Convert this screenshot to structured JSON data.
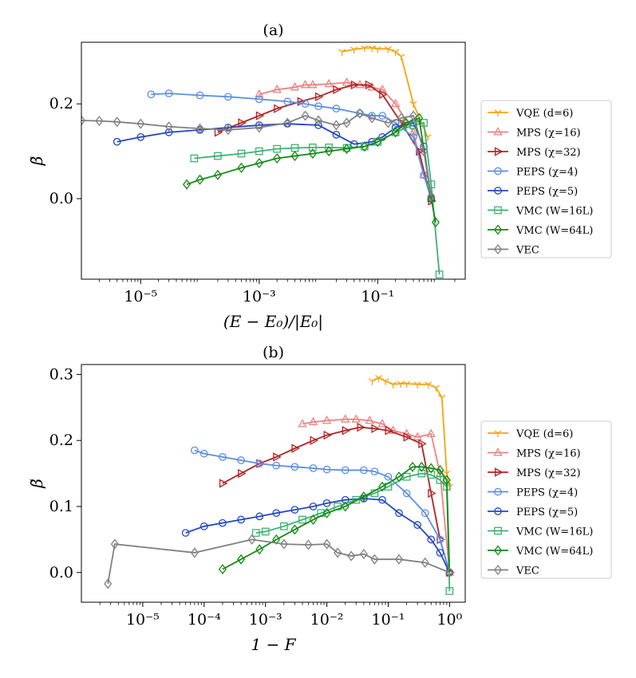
{
  "chart_data": [
    {
      "type": "line",
      "title": "(a)",
      "xlabel": "(E − E₀)/|E₀|",
      "ylabel": "β̃",
      "xscale": "log",
      "xlim": [
        1e-06,
        3
      ],
      "ylim": [
        -0.17,
        0.33
      ],
      "xticks": [
        1e-05,
        0.001,
        0.1
      ],
      "xtick_labels": [
        "10⁻⁵",
        "10⁻³",
        "10⁻¹"
      ],
      "yticks": [
        0.0,
        0.2
      ],
      "ytick_labels": [
        "0.0",
        "0.2"
      ],
      "grid": false,
      "legend_position": "right",
      "series": [
        {
          "name": "VQE (d=6)",
          "color": "#f5a40c",
          "marker": "tri_down",
          "x": [
            0.025,
            0.04,
            0.06,
            0.08,
            0.1,
            0.15,
            0.2,
            0.25,
            0.4,
            0.7
          ],
          "y": [
            0.31,
            0.315,
            0.318,
            0.318,
            0.316,
            0.316,
            0.31,
            0.3,
            0.2,
            0.13
          ]
        },
        {
          "name": "MPS (χ=16)",
          "color": "#ee8181",
          "marker": "triangle",
          "x": [
            0.001,
            0.002,
            0.004,
            0.006,
            0.008,
            0.015,
            0.03,
            0.05,
            0.08,
            0.12,
            0.2,
            0.4,
            0.6,
            0.8
          ],
          "y": [
            0.22,
            0.23,
            0.235,
            0.24,
            0.24,
            0.242,
            0.245,
            0.24,
            0.235,
            0.23,
            0.2,
            0.14,
            0.05,
            0.0
          ]
        },
        {
          "name": "MPS (χ=32)",
          "color": "#b22222",
          "marker": "triangle_right",
          "x": [
            0.0002,
            0.0005,
            0.001,
            0.002,
            0.005,
            0.01,
            0.02,
            0.04,
            0.07,
            0.12,
            0.25,
            0.5,
            0.8
          ],
          "y": [
            0.14,
            0.16,
            0.175,
            0.19,
            0.205,
            0.215,
            0.23,
            0.24,
            0.24,
            0.22,
            0.16,
            0.1,
            -0.005
          ]
        },
        {
          "name": "PEPS (χ=4)",
          "color": "#5b8fe6",
          "marker": "circle",
          "x": [
            1.5e-05,
            3e-05,
            0.0001,
            0.0003,
            0.001,
            0.003,
            0.006,
            0.01,
            0.02,
            0.05,
            0.08,
            0.12,
            0.2,
            0.4,
            0.6,
            0.8
          ],
          "y": [
            0.22,
            0.222,
            0.218,
            0.215,
            0.21,
            0.205,
            0.2,
            0.195,
            0.19,
            0.18,
            0.175,
            0.175,
            0.16,
            0.13,
            0.05,
            0.0
          ]
        },
        {
          "name": "PEPS (χ=5)",
          "color": "#2446c4",
          "marker": "circle",
          "x": [
            4e-06,
            1e-05,
            3e-05,
            0.0001,
            0.0003,
            0.001,
            0.003,
            0.01,
            0.02,
            0.04,
            0.08,
            0.12,
            0.2,
            0.4,
            0.6,
            0.8
          ],
          "y": [
            0.12,
            0.13,
            0.14,
            0.145,
            0.15,
            0.155,
            0.158,
            0.155,
            0.135,
            0.115,
            0.12,
            0.13,
            0.15,
            0.16,
            0.11,
            0.0
          ]
        },
        {
          "name": "VMC (W=16L)",
          "color": "#3cb371",
          "marker": "square",
          "x": [
            8e-05,
            0.0002,
            0.0005,
            0.001,
            0.002,
            0.004,
            0.008,
            0.015,
            0.03,
            0.06,
            0.1,
            0.2,
            0.4,
            0.6,
            0.8,
            1.1
          ],
          "y": [
            0.085,
            0.09,
            0.095,
            0.1,
            0.105,
            0.107,
            0.108,
            0.108,
            0.107,
            0.11,
            0.12,
            0.14,
            0.155,
            0.16,
            0.03,
            -0.16
          ]
        },
        {
          "name": "VMC (W=64L)",
          "color": "#138a13",
          "marker": "diamond",
          "x": [
            6e-05,
            0.0001,
            0.0002,
            0.0005,
            0.001,
            0.002,
            0.004,
            0.008,
            0.015,
            0.03,
            0.06,
            0.1,
            0.2,
            0.3,
            0.5,
            0.8,
            0.95
          ],
          "y": [
            0.03,
            0.04,
            0.05,
            0.065,
            0.075,
            0.085,
            0.09,
            0.095,
            0.1,
            0.105,
            0.11,
            0.12,
            0.14,
            0.16,
            0.17,
            0.0,
            -0.05
          ]
        },
        {
          "name": "VEC",
          "color": "#808080",
          "marker": "diamond",
          "x": [
            1e-06,
            2e-06,
            4e-06,
            1e-05,
            3e-05,
            0.0001,
            0.0003,
            0.001,
            0.003,
            0.006,
            0.01,
            0.02,
            0.03,
            0.05,
            0.08,
            0.15,
            0.25,
            0.4,
            0.6,
            0.8
          ],
          "y": [
            0.165,
            0.164,
            0.162,
            0.158,
            0.152,
            0.148,
            0.145,
            0.15,
            0.16,
            0.175,
            0.165,
            0.155,
            0.16,
            0.18,
            0.17,
            0.16,
            0.17,
            0.175,
            0.1,
            0.005
          ]
        }
      ]
    },
    {
      "type": "line",
      "title": "(b)",
      "xlabel": "1 − F",
      "ylabel": "β̃",
      "xscale": "log",
      "xlim": [
        1e-06,
        1.8
      ],
      "ylim": [
        -0.045,
        0.315
      ],
      "xticks": [
        1e-05,
        0.0001,
        0.001,
        0.01,
        0.1,
        1
      ],
      "xtick_labels": [
        "10⁻⁵",
        "10⁻⁴",
        "10⁻³",
        "10⁻²",
        "10⁻¹",
        "10⁰"
      ],
      "yticks": [
        0.0,
        0.1,
        0.2,
        0.3
      ],
      "ytick_labels": [
        "0.0",
        "0.1",
        "0.2",
        "0.3"
      ],
      "grid": false,
      "legend_position": "right",
      "series": [
        {
          "name": "VQE (d=6)",
          "color": "#f5a40c",
          "marker": "tri_down",
          "x": [
            0.055,
            0.07,
            0.09,
            0.12,
            0.16,
            0.2,
            0.3,
            0.45,
            0.6,
            0.75,
            0.9,
            1.0
          ],
          "y": [
            0.29,
            0.295,
            0.29,
            0.285,
            0.286,
            0.286,
            0.285,
            0.285,
            0.28,
            0.265,
            0.15,
            0.13
          ]
        },
        {
          "name": "MPS (χ=16)",
          "color": "#ee8181",
          "marker": "triangle",
          "x": [
            0.004,
            0.006,
            0.01,
            0.02,
            0.03,
            0.05,
            0.08,
            0.12,
            0.2,
            0.3,
            0.5,
            0.7,
            1.0
          ],
          "y": [
            0.225,
            0.228,
            0.23,
            0.232,
            0.232,
            0.23,
            0.225,
            0.215,
            0.21,
            0.205,
            0.21,
            0.15,
            0.0
          ]
        },
        {
          "name": "MPS (χ=32)",
          "color": "#b22222",
          "marker": "triangle_right",
          "x": [
            0.0002,
            0.0004,
            0.0008,
            0.0015,
            0.003,
            0.006,
            0.01,
            0.02,
            0.035,
            0.06,
            0.1,
            0.2,
            0.35,
            0.5,
            0.7,
            1.0
          ],
          "y": [
            0.135,
            0.15,
            0.165,
            0.175,
            0.188,
            0.2,
            0.208,
            0.215,
            0.22,
            0.218,
            0.215,
            0.205,
            0.195,
            0.12,
            0.05,
            0.0
          ]
        },
        {
          "name": "PEPS (χ=4)",
          "color": "#5b8fe6",
          "marker": "circle",
          "x": [
            7e-05,
            0.0001,
            0.0002,
            0.0004,
            0.0008,
            0.0015,
            0.003,
            0.006,
            0.01,
            0.02,
            0.04,
            0.06,
            0.1,
            0.2,
            0.4,
            0.7,
            1.0
          ],
          "y": [
            0.185,
            0.18,
            0.175,
            0.17,
            0.165,
            0.162,
            0.16,
            0.158,
            0.156,
            0.155,
            0.155,
            0.153,
            0.145,
            0.12,
            0.09,
            0.05,
            0.0
          ]
        },
        {
          "name": "PEPS (χ=5)",
          "color": "#2446c4",
          "marker": "circle",
          "x": [
            5e-05,
            0.0001,
            0.0002,
            0.0004,
            0.0008,
            0.0015,
            0.003,
            0.006,
            0.01,
            0.02,
            0.04,
            0.08,
            0.15,
            0.3,
            0.5,
            0.7,
            1.0
          ],
          "y": [
            0.06,
            0.07,
            0.075,
            0.08,
            0.085,
            0.09,
            0.095,
            0.1,
            0.105,
            0.11,
            0.112,
            0.11,
            0.09,
            0.072,
            0.05,
            0.03,
            0.0
          ]
        },
        {
          "name": "VMC (W=16L)",
          "color": "#3cb371",
          "marker": "square",
          "x": [
            0.0007,
            0.001,
            0.002,
            0.004,
            0.008,
            0.015,
            0.03,
            0.06,
            0.1,
            0.2,
            0.35,
            0.5,
            0.7,
            0.9,
            1.0
          ],
          "y": [
            0.06,
            0.062,
            0.07,
            0.08,
            0.09,
            0.1,
            0.11,
            0.12,
            0.13,
            0.145,
            0.15,
            0.148,
            0.14,
            0.13,
            -0.028
          ]
        },
        {
          "name": "VMC (W=64L)",
          "color": "#138a13",
          "marker": "diamond",
          "x": [
            0.0002,
            0.0004,
            0.0008,
            0.0015,
            0.003,
            0.006,
            0.01,
            0.02,
            0.04,
            0.08,
            0.15,
            0.25,
            0.35,
            0.5,
            0.7,
            0.9,
            1.0
          ],
          "y": [
            0.005,
            0.02,
            0.035,
            0.05,
            0.065,
            0.08,
            0.09,
            0.1,
            0.115,
            0.13,
            0.145,
            0.16,
            0.16,
            0.158,
            0.155,
            0.14,
            0.0
          ]
        },
        {
          "name": "VEC",
          "color": "#808080",
          "marker": "diamond",
          "x": [
            2.7e-06,
            3.5e-06,
            7e-05,
            0.0006,
            0.002,
            0.005,
            0.01,
            0.015,
            0.025,
            0.04,
            0.06,
            0.15,
            0.4,
            1.0
          ],
          "y": [
            -0.017,
            0.043,
            0.03,
            0.05,
            0.043,
            0.042,
            0.043,
            0.03,
            0.025,
            0.028,
            0.02,
            0.02,
            0.015,
            0.0
          ]
        }
      ]
    }
  ]
}
